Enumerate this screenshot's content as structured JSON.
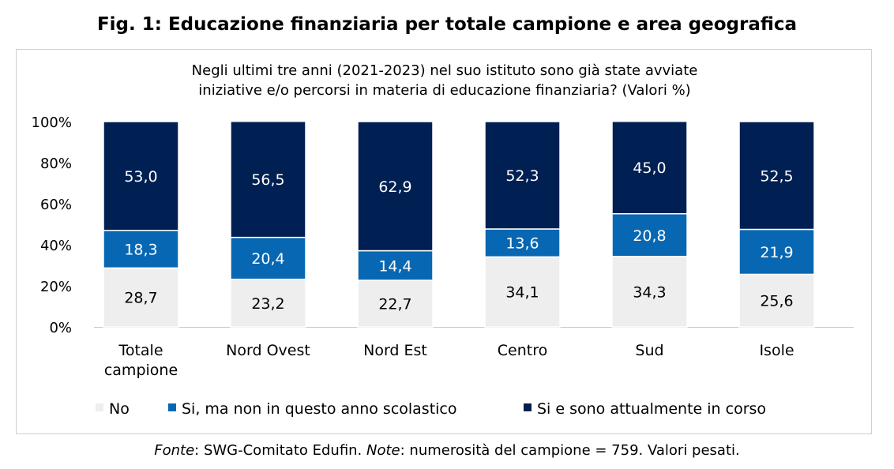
{
  "figure_title": "Fig. 1: Educazione finanziaria per totale campione e area geografica",
  "source": {
    "label1": "Fonte",
    "text1": ": SWG-Comitato Edufin. ",
    "label2": "Note",
    "text2": ": numerosità del campione = 759. Valori pesati."
  },
  "chart_data": {
    "type": "bar",
    "stacked": true,
    "title": "Negli ultimi tre anni (2021-2023) nel suo istituto sono già state avviate iniziative e/o percorsi in materia di educazione finanziaria? (Valori %)",
    "title_lines": [
      "Negli ultimi tre anni (2021-2023) nel suo istituto sono già state avviate",
      "iniziative e/o percorsi in materia di educazione finanziaria? (Valori %)"
    ],
    "categories": [
      [
        "Totale",
        "campione"
      ],
      [
        "Nord Ovest"
      ],
      [
        "Nord Est"
      ],
      [
        "Centro"
      ],
      [
        "Sud"
      ],
      [
        "Isole"
      ]
    ],
    "ylim": [
      0,
      100
    ],
    "yticks": [
      "0%",
      "20%",
      "40%",
      "60%",
      "80%",
      "100%"
    ],
    "grid": false,
    "legend_position": "bottom",
    "series": [
      {
        "name": "No",
        "color": "#eeeeee",
        "text_color": "#000000",
        "values": [
          28.7,
          23.2,
          22.7,
          34.1,
          34.3,
          25.6
        ],
        "labels": [
          "28,7",
          "23,2",
          "22,7",
          "34,1",
          "34,3",
          "25,6"
        ]
      },
      {
        "name": "Si, ma non in questo anno scolastico",
        "color": "#0867b2",
        "text_color": "#ffffff",
        "values": [
          18.3,
          20.4,
          14.4,
          13.6,
          20.8,
          21.9
        ],
        "labels": [
          "18,3",
          "20,4",
          "14,4",
          "13,6",
          "20,8",
          "21,9"
        ]
      },
      {
        "name": "Si e sono attualmente in corso",
        "color": "#001f52",
        "text_color": "#ffffff",
        "values": [
          53.0,
          56.5,
          62.9,
          52.3,
          45.0,
          52.5
        ],
        "labels": [
          "53,0",
          "56,5",
          "62,9",
          "52,3",
          "45,0",
          "52,5"
        ]
      }
    ]
  }
}
